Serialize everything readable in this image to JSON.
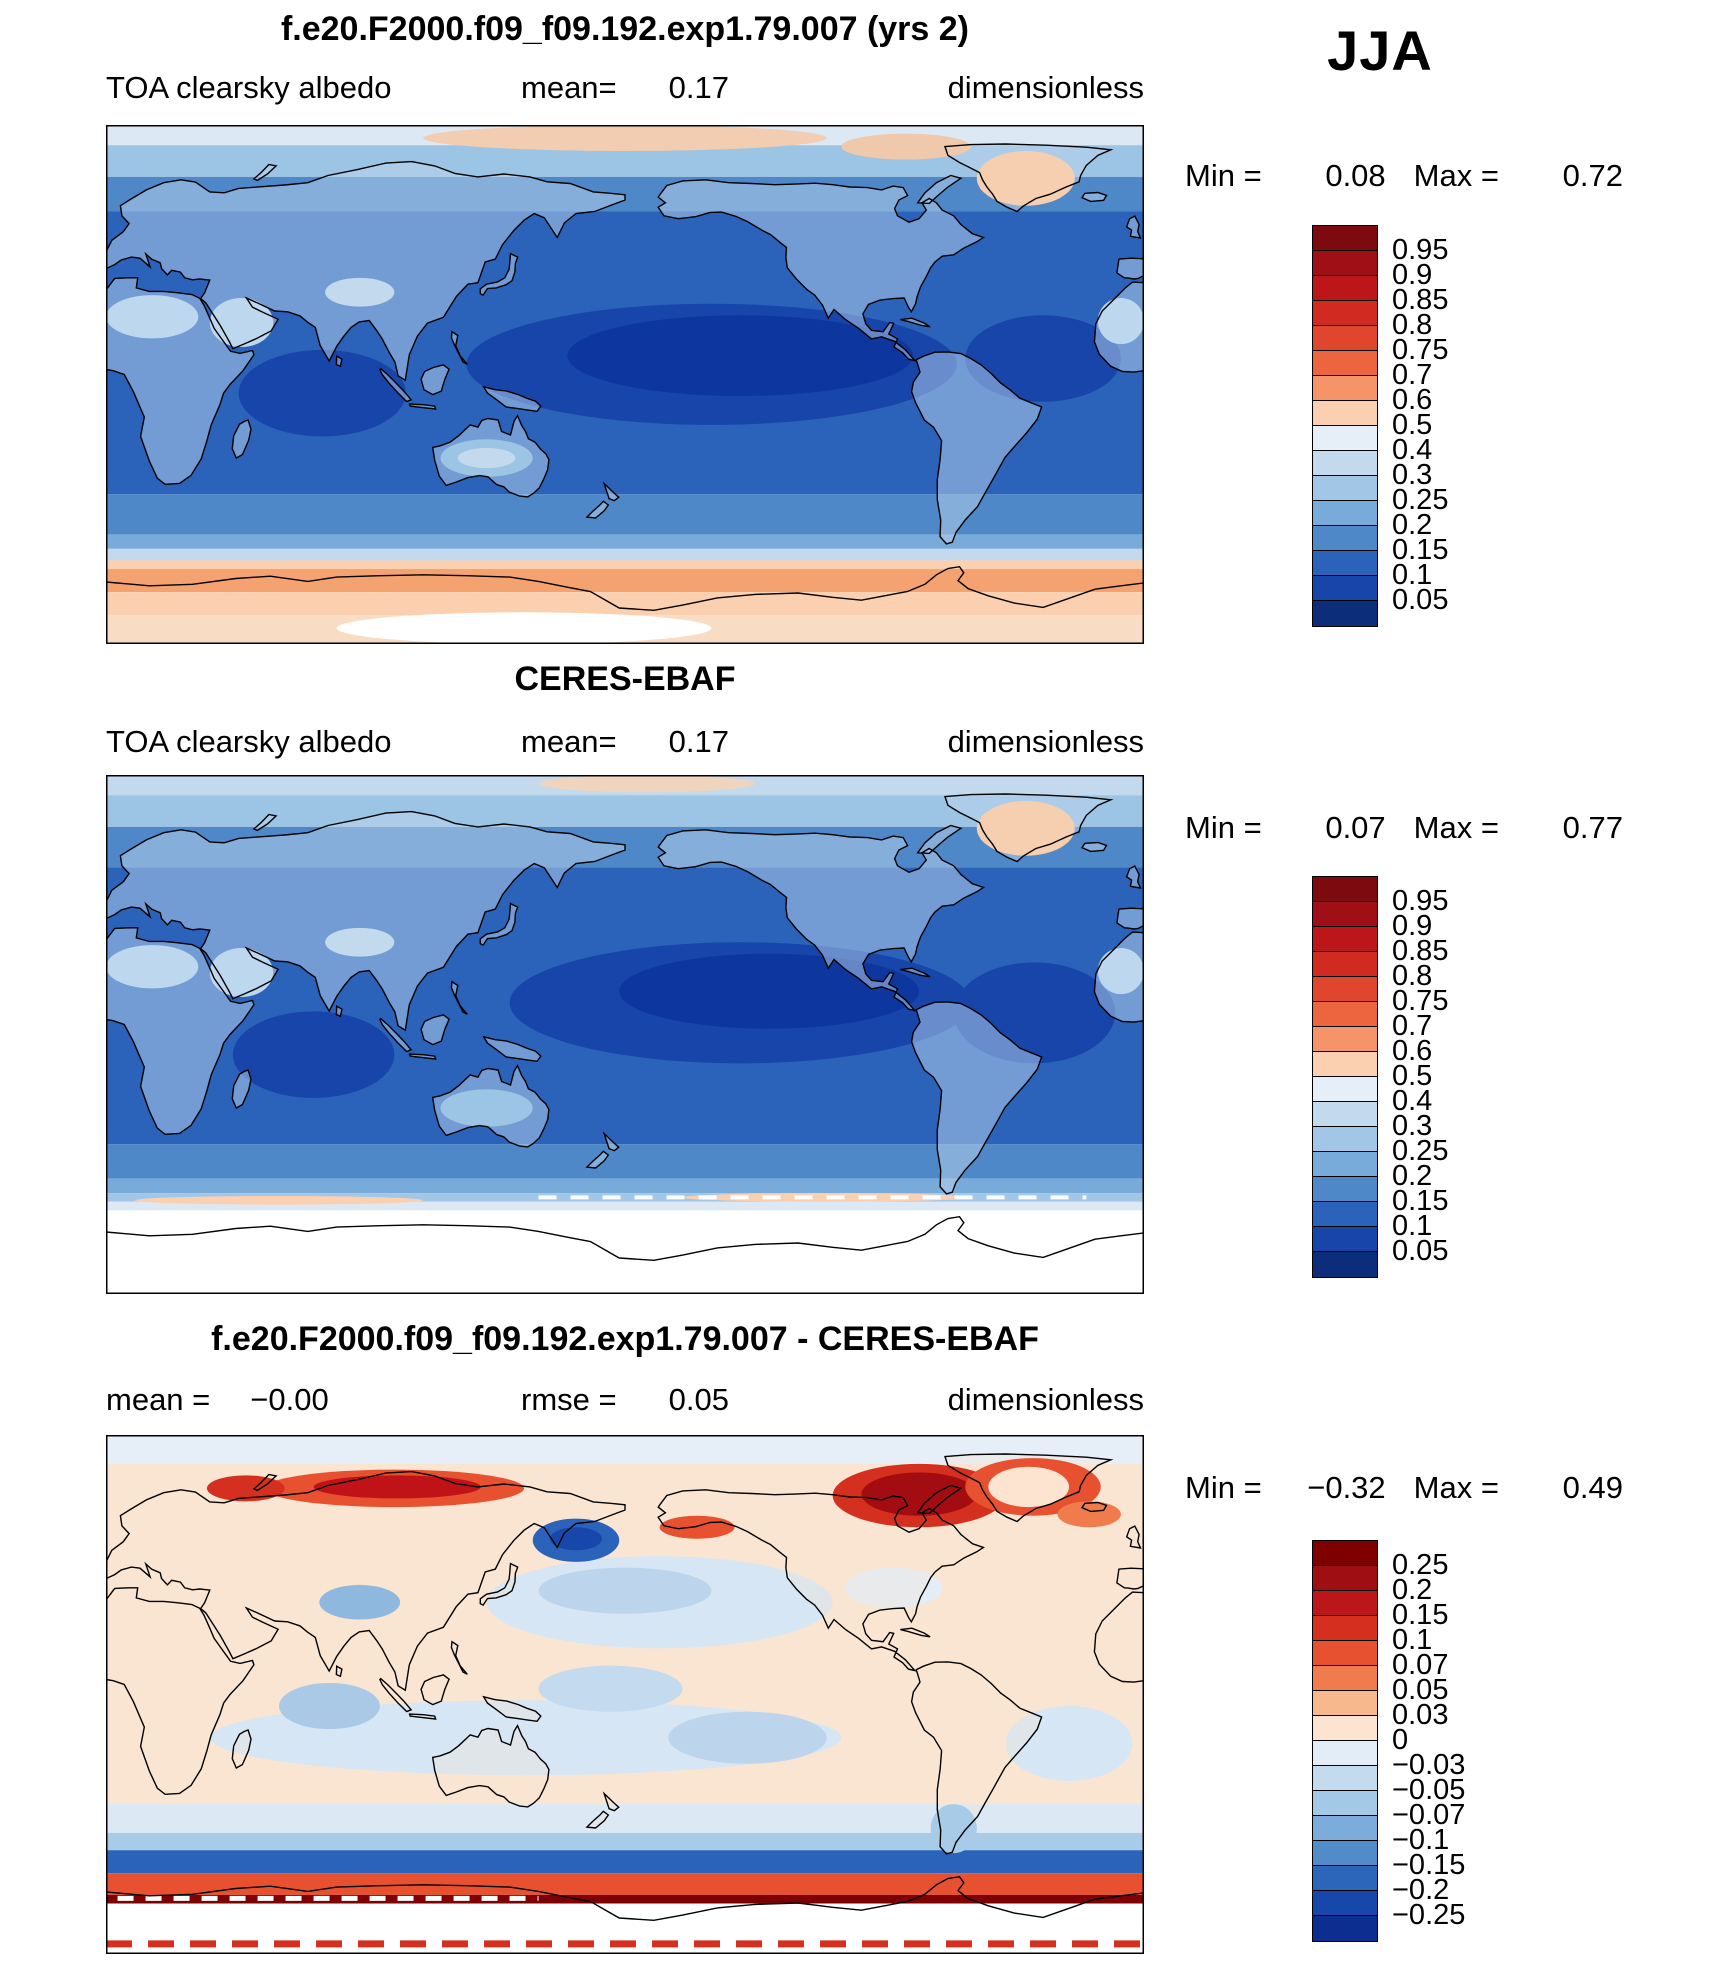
{
  "season": "JJA",
  "panels": [
    {
      "title": "f.e20.F2000.f09_f09.192.exp1.79.007 (yrs 2)",
      "var_label": "TOA clearsky albedo",
      "mean_label": "mean=",
      "mean_value": "0.17",
      "units": "dimensionless",
      "min_label": "Min =",
      "min_value": "0.08",
      "max_label": "Max =",
      "max_value": "0.72",
      "colorbar": {
        "labels": [
          "0.95",
          "0.9",
          "0.85",
          "0.8",
          "0.75",
          "0.7",
          "0.6",
          "0.5",
          "0.4",
          "0.3",
          "0.25",
          "0.2",
          "0.15",
          "0.1",
          "0.05"
        ],
        "colors": [
          "#7c0a0e",
          "#a00f15",
          "#bc151a",
          "#d02a21",
          "#e0452d",
          "#ec653f",
          "#f59468",
          "#fbd0b0",
          "#e6eef7",
          "#c2d9ee",
          "#a2c6e6",
          "#78abd9",
          "#4e88c9",
          "#2b63ba",
          "#1745aa",
          "#0b2d7a"
        ]
      },
      "map": {
        "bands": [
          {
            "lat": [
              83,
              90
            ],
            "color": "#dce9f5"
          },
          {
            "lat": [
              72,
              83
            ],
            "color": "#9cc4e4"
          },
          {
            "lat": [
              60,
              72
            ],
            "color": "#4e88c9"
          },
          {
            "lat": [
              -38,
              60
            ],
            "color": "#2b63ba"
          },
          {
            "lat": [
              -52,
              -38
            ],
            "color": "#4e88c9"
          },
          {
            "lat": [
              -57,
              -52
            ],
            "color": "#78abd9"
          },
          {
            "lat": [
              -61,
              -57
            ],
            "color": "#c2d9ee"
          },
          {
            "lat": [
              -64,
              -61
            ],
            "color": "#fbd0b0"
          },
          {
            "lat": [
              -72,
              -64
            ],
            "color": "#f5a271"
          },
          {
            "lat": [
              -80,
              -72
            ],
            "color": "#fbd0b0"
          },
          {
            "lat": [
              -90,
              -80
            ],
            "color": "#f8dcc4"
          }
        ],
        "under": [
          {
            "lon": [
              125,
              295
            ],
            "lat": [
              -14,
              28
            ],
            "color": "#1745aa"
          },
          {
            "lon": [
              160,
              280
            ],
            "lat": [
              -4,
              24
            ],
            "color": "#0d379e"
          },
          {
            "lon": [
              46,
              104
            ],
            "lat": [
              -18,
              12
            ],
            "color": "#1745aa"
          },
          {
            "lon": [
              298,
              352
            ],
            "lat": [
              -6,
              24
            ],
            "color": "#1745aa"
          }
        ],
        "landFill": "rgba(188,212,238,0.5)",
        "over": [
          {
            "lon": [
              0,
              32
            ],
            "lat": [
              16,
              31
            ],
            "color": "#bcd7ee"
          },
          {
            "lon": [
              344,
              360
            ],
            "lat": [
              14,
              30
            ],
            "color": "#bcd7ee"
          },
          {
            "lon": [
              36,
              58
            ],
            "lat": [
              13,
              30
            ],
            "color": "#bcd7ee"
          },
          {
            "lon": [
              76,
              100
            ],
            "lat": [
              27,
              37
            ],
            "color": "#c2d9ee"
          },
          {
            "lon": [
              116,
              148
            ],
            "lat": [
              -32,
              -19
            ],
            "color": "#9cc4e4"
          },
          {
            "lon": [
              122,
              142
            ],
            "lat": [
              -29,
              -22
            ],
            "color": "#c2d9ee"
          },
          {
            "lon": [
              302,
              336
            ],
            "lat": [
              62,
              81
            ],
            "color": "#f6ceb0"
          },
          {
            "lon": [
              110,
              250
            ],
            "lat": [
              81,
              90
            ],
            "color": "#f3cdb2"
          },
          {
            "lon": [
              255,
              300
            ],
            "lat": [
              78,
              87
            ],
            "color": "#f0c8ac"
          },
          {
            "lon": [
              80,
              210
            ],
            "lat": [
              -90,
              -79
            ],
            "color": "#ffffff"
          }
        ],
        "dashes": []
      }
    },
    {
      "title": "CERES-EBAF",
      "var_label": "TOA clearsky albedo",
      "mean_label": "mean=",
      "mean_value": "0.17",
      "units": "dimensionless",
      "min_label": "Min =",
      "min_value": "0.07",
      "max_label": "Max =",
      "max_value": "0.77",
      "colorbar": {
        "labels": [
          "0.95",
          "0.9",
          "0.85",
          "0.8",
          "0.75",
          "0.7",
          "0.6",
          "0.5",
          "0.4",
          "0.3",
          "0.25",
          "0.2",
          "0.15",
          "0.1",
          "0.05"
        ],
        "colors": [
          "#7c0a0e",
          "#a00f15",
          "#bc151a",
          "#d02a21",
          "#e0452d",
          "#ec653f",
          "#f59468",
          "#fbd0b0",
          "#e6eef7",
          "#c2d9ee",
          "#a2c6e6",
          "#78abd9",
          "#4e88c9",
          "#2b63ba",
          "#1745aa",
          "#0b2d7a"
        ]
      },
      "map": {
        "bands": [
          {
            "lat": [
              83,
              90
            ],
            "color": "#c2d9ee"
          },
          {
            "lat": [
              72,
              83
            ],
            "color": "#9cc4e4"
          },
          {
            "lat": [
              58,
              72
            ],
            "color": "#4e88c9"
          },
          {
            "lat": [
              -38,
              58
            ],
            "color": "#2b63ba"
          },
          {
            "lat": [
              -50,
              -38
            ],
            "color": "#4e88c9"
          },
          {
            "lat": [
              -55,
              -50
            ],
            "color": "#78abd9"
          },
          {
            "lat": [
              -58,
              -55
            ],
            "color": "#a2c6e6"
          },
          {
            "lat": [
              -61,
              -58
            ],
            "color": "#dce9f5"
          },
          {
            "lat": [
              -90,
              -61
            ],
            "color": "#ffffff"
          }
        ],
        "under": [
          {
            "lon": [
              140,
              300
            ],
            "lat": [
              -10,
              32
            ],
            "color": "#1745aa"
          },
          {
            "lon": [
              178,
              282
            ],
            "lat": [
              2,
              28
            ],
            "color": "#0d379e"
          },
          {
            "lon": [
              44,
              100
            ],
            "lat": [
              -22,
              8
            ],
            "color": "#1745aa"
          },
          {
            "lon": [
              294,
              350
            ],
            "lat": [
              -10,
              25
            ],
            "color": "#1745aa"
          }
        ],
        "landFill": "rgba(188,212,238,0.5)",
        "over": [
          {
            "lon": [
              0,
              32
            ],
            "lat": [
              16,
              31
            ],
            "color": "#bcd7ee"
          },
          {
            "lon": [
              344,
              360
            ],
            "lat": [
              14,
              30
            ],
            "color": "#bcd7ee"
          },
          {
            "lon": [
              36,
              58
            ],
            "lat": [
              13,
              30
            ],
            "color": "#bcd7ee"
          },
          {
            "lon": [
              76,
              100
            ],
            "lat": [
              27,
              37
            ],
            "color": "#c2d9ee"
          },
          {
            "lon": [
              116,
              148
            ],
            "lat": [
              -32,
              -19
            ],
            "color": "#9cc4e4"
          },
          {
            "lon": [
              302,
              336
            ],
            "lat": [
              62,
              81
            ],
            "color": "#f6ceb0"
          },
          {
            "lon": [
              150,
              225
            ],
            "lat": [
              84,
              90
            ],
            "color": "#f0d5be"
          },
          {
            "lon": [
              10,
              110
            ],
            "lat": [
              -59,
              -56
            ],
            "color": "#fbd0b0"
          },
          {
            "lon": [
              200,
              300
            ],
            "lat": [
              -58,
              -55
            ],
            "color": "#fbd0b0"
          }
        ],
        "dashes": [
          {
            "lat": -56.5,
            "lon": [
              150,
              340
            ],
            "color": "#ffffff",
            "w": 4,
            "dash": "18,14"
          }
        ]
      }
    },
    {
      "title": "f.e20.F2000.f09_f09.192.exp1.79.007 - CERES-EBAF",
      "mean_label": "mean =",
      "mean_value": "−0.00",
      "rmse_label": "rmse =",
      "rmse_value": "0.05",
      "units": "dimensionless",
      "min_label": "Min =",
      "min_value": "−0.32",
      "max_label": "Max =",
      "max_value": "0.49",
      "colorbar": {
        "labels": [
          "0.25",
          "0.2",
          "0.15",
          "0.1",
          "0.07",
          "0.05",
          "0.03",
          "0",
          "−0.03",
          "−0.05",
          "−0.07",
          "−0.1",
          "−0.15",
          "−0.2",
          "−0.25"
        ],
        "colors": [
          "#7f0000",
          "#9f0e13",
          "#bc151a",
          "#d5301f",
          "#e8512f",
          "#f07c4e",
          "#f8b88e",
          "#fce4d0",
          "#e2edf8",
          "#c4dbef",
          "#a4c9e6",
          "#7cacda",
          "#518cc9",
          "#2c66bb",
          "#1747ab",
          "#0c2e90"
        ]
      },
      "map": {
        "bands": [
          {
            "lat": [
              80,
              90
            ],
            "color": "#e6eef7"
          },
          {
            "lat": [
              -38,
              80
            ],
            "color": "#fae5d2"
          },
          {
            "lat": [
              -48,
              -38
            ],
            "color": "#dce9f5"
          },
          {
            "lat": [
              -54,
              -48
            ],
            "color": "#a8cbe8"
          },
          {
            "lat": [
              -62,
              -54
            ],
            "color": "#2b63ba"
          },
          {
            "lat": [
              -69.5,
              -62
            ],
            "color": "#e8512f"
          },
          {
            "lat": [
              -72.5,
              -69.5
            ],
            "color": "#7f0000"
          },
          {
            "lat": [
              -90,
              -72.5
            ],
            "color": "#ffffff"
          }
        ],
        "under": [
          {
            "lon": [
              132,
              252
            ],
            "lat": [
              16,
              48
            ],
            "color": "#d6e6f4"
          },
          {
            "lon": [
              150,
              210
            ],
            "lat": [
              28,
              44
            ],
            "color": "#bcd5ec"
          },
          {
            "lon": [
              36,
              255
            ],
            "lat": [
              -28,
              -2
            ],
            "color": "#d6e6f4"
          },
          {
            "lon": [
              60,
              95
            ],
            "lat": [
              -12,
              4
            ],
            "color": "#aac9e6"
          },
          {
            "lon": [
              195,
              250
            ],
            "lat": [
              -24,
              -6
            ],
            "color": "#bcd5ec"
          },
          {
            "lon": [
              312,
              356
            ],
            "lat": [
              -30,
              -4
            ],
            "color": "#d6e6f4"
          },
          {
            "lon": [
              256,
              290
            ],
            "lat": [
              30,
              44
            ],
            "color": "#e2edf8"
          },
          {
            "lon": [
              150,
              200
            ],
            "lat": [
              -6,
              10
            ],
            "color": "#c4dbef"
          }
        ],
        "landFill": "rgba(250,228,208,0.3)",
        "over": [
          {
            "lon": [
              252,
              312
            ],
            "lat": [
              58,
              80
            ],
            "color": "#d5301f"
          },
          {
            "lon": [
              262,
              302
            ],
            "lat": [
              62,
              77
            ],
            "color": "#a30d12"
          },
          {
            "lon": [
              55,
              145
            ],
            "lat": [
              65,
              78
            ],
            "color": "#e8512f"
          },
          {
            "lon": [
              72,
              130
            ],
            "lat": [
              68,
              76
            ],
            "color": "#c01318"
          },
          {
            "lon": [
              35,
              62
            ],
            "lat": [
              67,
              76
            ],
            "color": "#d5301f"
          },
          {
            "lon": [
              298,
              345
            ],
            "lat": [
              62,
              82
            ],
            "color": "#e8512f"
          },
          {
            "lon": [
              306,
              334
            ],
            "lat": [
              65,
              79
            ],
            "color": "#fce4d0"
          },
          {
            "lon": [
              148,
              178
            ],
            "lat": [
              46,
              61
            ],
            "color": "#2b63ba"
          },
          {
            "lon": [
              154,
              172
            ],
            "lat": [
              50,
              58
            ],
            "color": "#1747ab"
          },
          {
            "lon": [
              192,
              218
            ],
            "lat": [
              54,
              62
            ],
            "color": "#e8512f"
          },
          {
            "lon": [
              330,
              352
            ],
            "lat": [
              58,
              67
            ],
            "color": "#f07c4e"
          },
          {
            "lon": [
              74,
              102
            ],
            "lat": [
              26,
              38
            ],
            "color": "#8fb8de"
          },
          {
            "lon": [
              286,
              302
            ],
            "lat": [
              -55,
              -38
            ],
            "color": "#a8cbe8"
          }
        ],
        "dashes": [
          {
            "lat": -70.7,
            "lon": [
              4,
              150
            ],
            "color": "#ffffff",
            "w": 5,
            "dash": "16,12"
          },
          {
            "lat": -86.5,
            "lon": [
              0,
              360
            ],
            "color": "#d5301f",
            "w": 7,
            "dash": "26,16"
          }
        ]
      }
    }
  ],
  "chart_data": [
    {
      "type": "heatmap",
      "kind": "global-lat-lon-map",
      "title": "f.e20.F2000.f09_f09.192.exp1.79.007 (yrs 2)",
      "variable": "TOA clearsky albedo",
      "season": "JJA",
      "units": "dimensionless",
      "mean": 0.17,
      "min": 0.08,
      "max": 0.72,
      "contour_levels": [
        0.05,
        0.1,
        0.15,
        0.2,
        0.25,
        0.3,
        0.4,
        0.5,
        0.6,
        0.7,
        0.75,
        0.8,
        0.85,
        0.9,
        0.95
      ],
      "palette": "dark-blue (low) to dark-red (high)",
      "legend_position": "right"
    },
    {
      "type": "heatmap",
      "kind": "global-lat-lon-map",
      "title": "CERES-EBAF",
      "variable": "TOA clearsky albedo",
      "season": "JJA",
      "units": "dimensionless",
      "mean": 0.17,
      "min": 0.07,
      "max": 0.77,
      "contour_levels": [
        0.05,
        0.1,
        0.15,
        0.2,
        0.25,
        0.3,
        0.4,
        0.5,
        0.6,
        0.7,
        0.75,
        0.8,
        0.85,
        0.9,
        0.95
      ],
      "palette": "dark-blue (low) to dark-red (high)",
      "legend_position": "right",
      "notes": "no data (white) south of ~60S"
    },
    {
      "type": "heatmap",
      "kind": "global-lat-lon-difference-map",
      "title": "f.e20.F2000.f09_f09.192.exp1.79.007 - CERES-EBAF",
      "variable": "TOA clearsky albedo difference",
      "season": "JJA",
      "units": "dimensionless",
      "mean": -0.0,
      "rmse": 0.05,
      "min": -0.32,
      "max": 0.49,
      "contour_levels": [
        -0.25,
        -0.2,
        -0.15,
        -0.1,
        -0.07,
        -0.05,
        -0.03,
        0,
        0.03,
        0.05,
        0.07,
        0.1,
        0.15,
        0.2,
        0.25
      ],
      "palette": "blue (negative) to red (positive)",
      "legend_position": "right",
      "notes": "strong positive bias over Arctic land/sea-ice and near Antarctic coast; negative band over Southern Ocean ~55-62S"
    }
  ]
}
